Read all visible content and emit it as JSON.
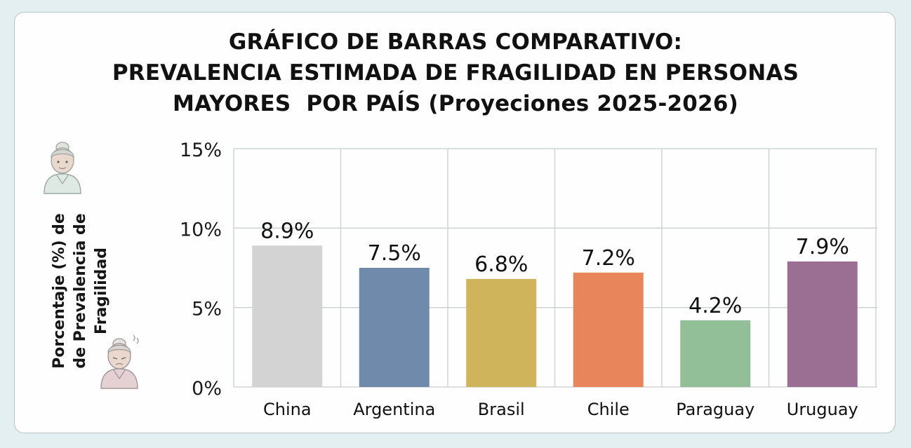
{
  "chart_data": {
    "type": "bar",
    "title": [
      "GRÁFICO DE BARRAS COMPARATIVO:",
      "PREVALENCIA ESTIMADA DE FRAGILIDAD EN PERSONAS",
      "MAYORES  POR PAÍS (Proyeciones 2025-2026)"
    ],
    "ylabel": "Porcentaje (%) de de Prevalencia de Fragilidad",
    "xlabel": "",
    "categories": [
      "China",
      "Argentina",
      "Brasil",
      "Chile",
      "Paraguay",
      "Uruguay"
    ],
    "values": [
      8.9,
      7.5,
      6.8,
      7.2,
      4.2,
      7.9
    ],
    "data_labels": [
      "8.9%",
      "7.5%",
      "6.8%",
      "7.2%",
      "4.2%",
      "7.9%"
    ],
    "colors": [
      "#d3d3d3",
      "#6f8aab",
      "#cfb45c",
      "#e9855a",
      "#93bf98",
      "#9a6f93"
    ],
    "ylim": [
      0,
      15
    ],
    "yticks": [
      0,
      5,
      10,
      15
    ],
    "ytick_labels": [
      "0%",
      "5%",
      "10%",
      "15%"
    ],
    "grid": true,
    "legend": "none"
  },
  "decorations": {
    "top_icon": "elderly-woman-icon",
    "bottom_icon": "frail-elderly-woman-icon"
  }
}
